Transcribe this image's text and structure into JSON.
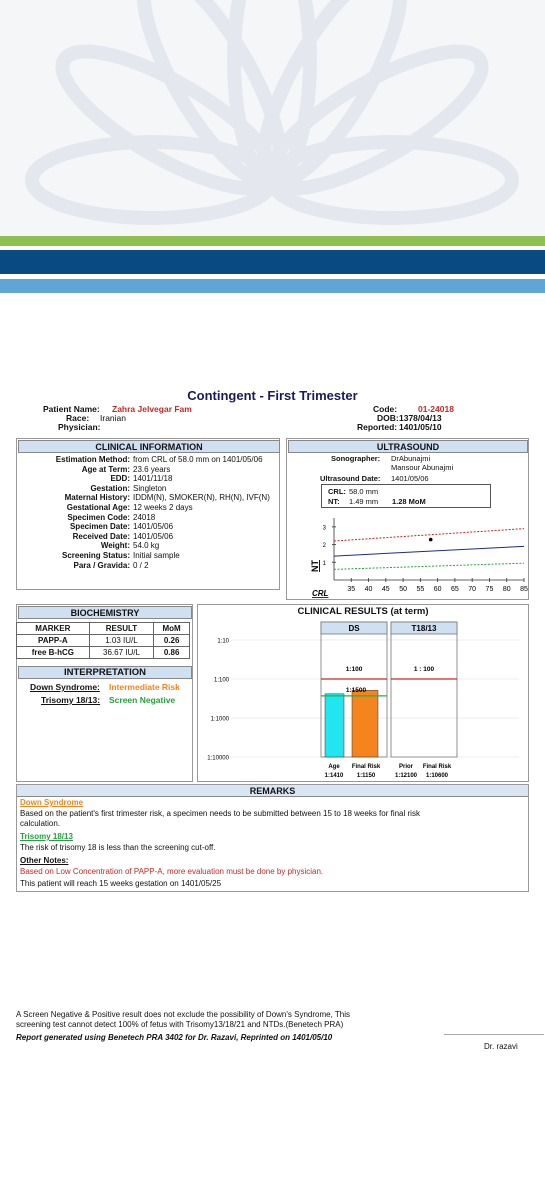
{
  "title": "Contingent - First Trimester",
  "patient": {
    "name_label": "Patient Name:",
    "name": "Zahra Jelvegar Fam",
    "race_label": "Race:",
    "race": "Iranian",
    "physician_label": "Physician:",
    "code_label": "Code:",
    "code": "01-24018",
    "dob_label": "DOB:",
    "dob": "1378/04/13",
    "reported_label": "Reported:",
    "reported": "1401/05/10"
  },
  "clinical": {
    "heading": "CLINICAL INFORMATION",
    "rows": [
      {
        "k": "Estimation Method:",
        "v": "from CRL of 58.0 mm on 1401/05/06"
      },
      {
        "k": "Age at Term:",
        "v": "23.6 years"
      },
      {
        "k": "EDD:",
        "v": "1401/11/18"
      },
      {
        "k": "Gestation:",
        "v": "Singleton"
      },
      {
        "k": "Maternal History:",
        "v": "IDDM(N), SMOKER(N), RH(N), IVF(N)"
      },
      {
        "k": "Gestational Age:",
        "v": "12 weeks 2 days"
      },
      {
        "k": "Specimen Code:",
        "v": "24018"
      },
      {
        "k": "Specimen Date:",
        "v": "1401/05/06"
      },
      {
        "k": "Received Date:",
        "v": "1401/05/06"
      },
      {
        "k": "Weight:",
        "v": "54.0 kg"
      },
      {
        "k": "Screening Status:",
        "v": "Initial sample"
      },
      {
        "k": "Para / Gravida:",
        "v": "0 / 2"
      }
    ]
  },
  "ultrasound": {
    "heading": "ULTRASOUND",
    "sonographer_label": "Sonographer:",
    "sonographer": "DrAbunajmi",
    "sonographer2": "Mansour Abunajmi",
    "date_label": "Ultrasound Date:",
    "date": "1401/05/06",
    "crl_label": "CRL:",
    "crl": "58.0 mm",
    "nt_label": "NT:",
    "nt": "1.49  mm",
    "nt_mom": "1.28 MoM",
    "chart_y_label": "NT",
    "chart_x_label": "CRL",
    "y_ticks": [
      "3",
      "2",
      "1"
    ],
    "x_ticks": [
      "35",
      "40",
      "45",
      "50",
      "55",
      "60",
      "65",
      "70",
      "75",
      "80",
      "85"
    ]
  },
  "biochemistry": {
    "heading": "BIOCHEMISTRY",
    "columns": [
      "MARKER",
      "RESULT",
      "MoM"
    ],
    "rows": [
      [
        "PAPP-A",
        "1.03 IU/L",
        "0.26"
      ],
      [
        "free B-hCG",
        "36.67 IU/L",
        "0.86"
      ]
    ]
  },
  "interpretation": {
    "heading": "INTERPRETATION",
    "ds_label": "Down Syndrome:",
    "ds_value": "Intermediate Risk",
    "t_label": "Trisomy 18/13:",
    "t_value": "Screen Negative"
  },
  "results": {
    "heading": "CLINICAL RESULTS (at term)",
    "ds_head": "DS",
    "t_head": "T18/13",
    "y_ticks": [
      "1:10",
      "1:100",
      "1:1000",
      "1:10000"
    ],
    "ds_cutoff": "1:100",
    "t_cutoff": "1 : 100",
    "ds_final_label": "1:1500",
    "ds_bar_labels": [
      "Age",
      "Final Risk"
    ],
    "ds_bar_values": [
      "1:1410",
      "1:1150"
    ],
    "t_bar_labels": [
      "Prior",
      "Final Risk"
    ],
    "t_bar_values": [
      "1:12100",
      "1:10600"
    ]
  },
  "chart_data": [
    {
      "type": "line",
      "title": "",
      "xlabel": "CRL",
      "ylabel": "NT",
      "xlim": [
        30,
        85
      ],
      "ylim": [
        0,
        3.5
      ],
      "series": [
        {
          "x": [
            30,
            85
          ],
          "values": [
            2.2,
            2.9
          ]
        },
        {
          "x": [
            30,
            85
          ],
          "values": [
            1.35,
            1.9
          ]
        },
        {
          "x": [
            30,
            85
          ],
          "values": [
            0.6,
            0.95
          ]
        }
      ],
      "point": {
        "x": 58.0,
        "y": 1.49
      }
    },
    {
      "type": "bar",
      "title": "CLINICAL RESULTS (at term)",
      "log_scale": true,
      "categories": [
        "Age",
        "Final Risk",
        "Prior",
        "Final Risk"
      ],
      "values_denominator": [
        1410,
        1150,
        12100,
        10600
      ],
      "cutoff_denominator": 100,
      "colors": [
        "#23e5f0",
        "#f5841f",
        "#23e5f0",
        "#1fb63a"
      ]
    }
  ],
  "remarks": {
    "heading": "REMARKS",
    "ds_title": "Down Syndrome",
    "ds_text1": "Based on the patient's first trimester risk, a specimen needs to be submitted between 15 to 18 weeks for final risk",
    "ds_text2": "calculation.",
    "t_title": "Trisomy 18/13",
    "t_text": "The risk of trisomy 18 is less than the screening cut-off.",
    "other_title": "Other Notes:",
    "other_text": "Based on Low Concentration of  PAPP-A, more evaluation must be done by physician.",
    "reach_text": "This patient will reach 15 weeks gestation on 1401/05/25"
  },
  "footer": {
    "line1": "A Screen Negative & Positive result does not exclude the possibility of Down's Syndrome, This",
    "line2": "screening test cannot detect 100% of fetus with Trisomy13/18/21 and NTDs.(Benetech PRA)",
    "line3": "Report generated using Benetech PRA 3402 for Dr. Razavi, Reprinted on 1401/05/10",
    "signature": "Dr. razavi"
  },
  "colors": {
    "green_band": "#8dc051",
    "blue_band": "#0a4a82",
    "light_band": "#5ea6d6",
    "risk_line": "#c62828"
  }
}
